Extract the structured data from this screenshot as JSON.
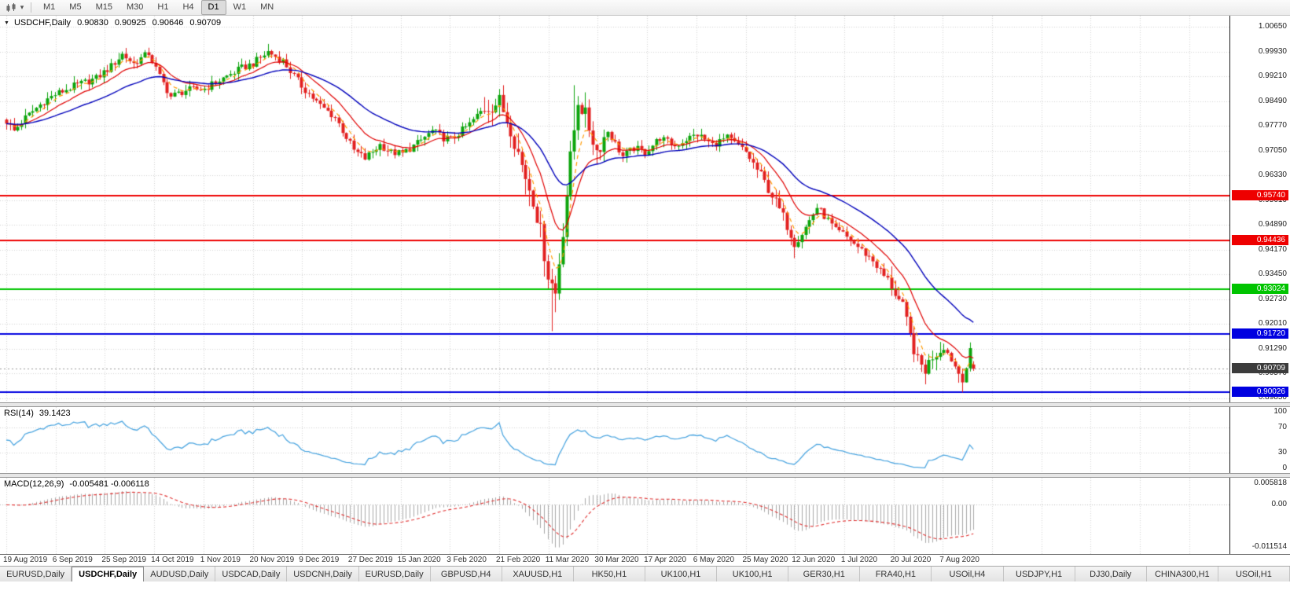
{
  "toolbar": {
    "timeframes": [
      "M1",
      "M5",
      "M15",
      "M30",
      "H1",
      "H4",
      "D1",
      "W1",
      "MN"
    ],
    "active_timeframe": "D1",
    "icons": [
      "chart-type-icon",
      "dropdown-arrow-icon"
    ]
  },
  "chart": {
    "title": "USDCHF,Daily",
    "ohlc": {
      "open": "0.90830",
      "high": "0.90925",
      "low": "0.90646",
      "close": "0.90709"
    }
  },
  "price_axis": {
    "ticks": [
      "1.00650",
      "0.99930",
      "0.99210",
      "0.98490",
      "0.97770",
      "0.97050",
      "0.96330",
      "0.95610",
      "0.94890",
      "0.94170",
      "0.93450",
      "0.92730",
      "0.92010",
      "0.91290",
      "0.90570",
      "0.89850"
    ]
  },
  "levels": [
    {
      "price": 0.9574,
      "label": "0.95740",
      "color": "#ee0000"
    },
    {
      "price": 0.94436,
      "label": "0.94436",
      "color": "#ee0000"
    },
    {
      "price": 0.93024,
      "label": "0.93024",
      "color": "#00c400"
    },
    {
      "price": 0.9172,
      "label": "0.91720",
      "color": "#0000e0"
    },
    {
      "price": 0.90026,
      "label": "0.90026",
      "color": "#0000e0"
    }
  ],
  "current_price": {
    "value": 0.90709,
    "label": "0.90709",
    "color": "#3c3c3c"
  },
  "rsi": {
    "label": "RSI(14)",
    "value": "39.1423",
    "axis": [
      {
        "v": 100,
        "label": "100"
      },
      {
        "v": 70,
        "label": "70"
      },
      {
        "v": 30,
        "label": "30"
      },
      {
        "v": 0,
        "label": "0"
      }
    ],
    "level_lines": [
      70,
      30
    ],
    "color": "#4da6e0"
  },
  "macd": {
    "label": "MACD(12,26,9)",
    "values": "-0.005481 -0.006118",
    "axis_top": "0.005818",
    "axis_zero": "0.00",
    "axis_bottom": "-0.011514",
    "hist_color": "#a8a8a8",
    "signal_color": "#e03030"
  },
  "date_axis": [
    "19 Aug 2019",
    "6 Sep 2019",
    "25 Sep 2019",
    "14 Oct 2019",
    "1 Nov 2019",
    "20 Nov 2019",
    "9 Dec 2019",
    "27 Dec 2019",
    "15 Jan 2020",
    "3 Feb 2020",
    "21 Feb 2020",
    "11 Mar 2020",
    "30 Mar 2020",
    "17 Apr 2020",
    "6 May 2020",
    "25 May 2020",
    "12 Jun 2020",
    "1 Jul 2020",
    "20 Jul 2020",
    "7 Aug 2020"
  ],
  "tabs": [
    {
      "label": "EURUSD,Daily",
      "active": false
    },
    {
      "label": "USDCHF,Daily",
      "active": true
    },
    {
      "label": "AUDUSD,Daily",
      "active": false
    },
    {
      "label": "USDCAD,Daily",
      "active": false
    },
    {
      "label": "USDCNH,Daily",
      "active": false
    },
    {
      "label": "EURUSD,Daily",
      "active": false
    },
    {
      "label": "GBPUSD,H4",
      "active": false
    },
    {
      "label": "XAUUSD,H1",
      "active": false
    },
    {
      "label": "HK50,H1",
      "active": false
    },
    {
      "label": "UK100,H1",
      "active": false
    },
    {
      "label": "UK100,H1",
      "active": false
    },
    {
      "label": "GER30,H1",
      "active": false
    },
    {
      "label": "FRA40,H1",
      "active": false
    },
    {
      "label": "USOil,H4",
      "active": false
    },
    {
      "label": "USDJPY,H1",
      "active": false
    },
    {
      "label": "DJ30,Daily",
      "active": false
    },
    {
      "label": "CHINA300,H1",
      "active": false
    },
    {
      "label": "USOil,H1",
      "active": false
    }
  ],
  "chart_data": {
    "type": "candlestick",
    "symbol": "USDCHF",
    "timeframe": "Daily",
    "visible_range": {
      "start": "19 Aug 2019",
      "end": "21 Aug 2020"
    },
    "y_range": [
      0.8973,
      1.0097
    ],
    "candle_count": 260,
    "last_ohlc": {
      "open": 0.9083,
      "high": 0.90925,
      "low": 0.90646,
      "close": 0.90709
    },
    "colors": {
      "up": "#0ca50c",
      "down": "#e22020",
      "grid": "#d2d2d2"
    },
    "close_waypoints": [
      [
        0,
        0.979
      ],
      [
        2,
        0.9762
      ],
      [
        5,
        0.98
      ],
      [
        10,
        0.9848
      ],
      [
        13,
        0.9868
      ],
      [
        18,
        0.9892
      ],
      [
        24,
        0.9915
      ],
      [
        28,
        0.995
      ],
      [
        31,
        0.9985
      ],
      [
        34,
        0.9958
      ],
      [
        38,
        0.9988
      ],
      [
        41,
        0.992
      ],
      [
        44,
        0.9862
      ],
      [
        48,
        0.988
      ],
      [
        53,
        0.9885
      ],
      [
        58,
        0.9915
      ],
      [
        63,
        0.9945
      ],
      [
        66,
        0.9958
      ],
      [
        70,
        0.9992
      ],
      [
        74,
        0.9965
      ],
      [
        79,
        0.9893
      ],
      [
        84,
        0.9835
      ],
      [
        88,
        0.9802
      ],
      [
        93,
        0.9705
      ],
      [
        96,
        0.9682
      ],
      [
        100,
        0.9722
      ],
      [
        103,
        0.97
      ],
      [
        106,
        0.9696
      ],
      [
        110,
        0.9726
      ],
      [
        114,
        0.9762
      ],
      [
        117,
        0.9742
      ],
      [
        119,
        0.9737
      ],
      [
        124,
        0.9782
      ],
      [
        128,
        0.983
      ],
      [
        132,
        0.9846
      ],
      [
        135,
        0.9772
      ],
      [
        138,
        0.9662
      ],
      [
        141,
        0.9565
      ],
      [
        143,
        0.9468
      ],
      [
        145,
        0.9345
      ],
      [
        147,
        0.929
      ],
      [
        149,
        0.9475
      ],
      [
        151,
        0.968
      ],
      [
        153,
        0.9852
      ],
      [
        155,
        0.9805
      ],
      [
        158,
        0.9705
      ],
      [
        161,
        0.9762
      ],
      [
        165,
        0.9688
      ],
      [
        168,
        0.9712
      ],
      [
        171,
        0.97
      ],
      [
        175,
        0.9742
      ],
      [
        179,
        0.9718
      ],
      [
        182,
        0.9738
      ],
      [
        185,
        0.9752
      ],
      [
        189,
        0.9722
      ],
      [
        193,
        0.9742
      ],
      [
        196,
        0.9718
      ],
      [
        198,
        0.97
      ],
      [
        202,
        0.9632
      ],
      [
        205,
        0.9575
      ],
      [
        208,
        0.9512
      ],
      [
        211,
        0.9438
      ],
      [
        214,
        0.9482
      ],
      [
        217,
        0.954
      ],
      [
        220,
        0.9502
      ],
      [
        222,
        0.9472
      ],
      [
        224,
        0.9462
      ],
      [
        228,
        0.9425
      ],
      [
        232,
        0.9385
      ],
      [
        235,
        0.934
      ],
      [
        237,
        0.9312
      ],
      [
        240,
        0.9248
      ],
      [
        242,
        0.9165
      ],
      [
        244,
        0.9092
      ],
      [
        246,
        0.9068
      ],
      [
        248,
        0.9108
      ],
      [
        251,
        0.9135
      ],
      [
        253,
        0.9098
      ],
      [
        255,
        0.9058
      ],
      [
        256,
        0.9042
      ],
      [
        257,
        0.9075
      ],
      [
        258,
        0.912
      ],
      [
        259,
        0.90709
      ]
    ],
    "spikes": [
      {
        "i": 70,
        "high": 1.0015
      },
      {
        "i": 146,
        "low": 0.918
      },
      {
        "i": 147,
        "low": 0.9235
      },
      {
        "i": 152,
        "high": 0.9895
      },
      {
        "i": 211,
        "low": 0.9392
      },
      {
        "i": 255,
        "low": 0.903
      },
      {
        "i": 256,
        "low": 0.9002
      }
    ],
    "volatility_zones": [
      {
        "from": 128,
        "to": 160,
        "mult": 2.4
      },
      {
        "from": 200,
        "to": 215,
        "mult": 1.4
      },
      {
        "from": 236,
        "to": 250,
        "mult": 1.7
      }
    ],
    "overlays": [
      {
        "name": "ma-fast",
        "type": "ema",
        "period": 5,
        "color": "#ff9900",
        "dash": [
          5,
          4
        ],
        "width": 1.2
      },
      {
        "name": "ma-mid",
        "type": "ema",
        "period": 13,
        "color": "#e00000",
        "dash": [],
        "width": 1.2
      },
      {
        "name": "ma-slow",
        "type": "ema",
        "period": 34,
        "color": "#0000bb",
        "dash": [],
        "width": 1.4
      }
    ],
    "indicators": [
      {
        "name": "RSI",
        "period": 14,
        "current": 39.1423,
        "scale": [
          0,
          100
        ],
        "levels": [
          30,
          70
        ]
      },
      {
        "name": "MACD",
        "params": [
          12,
          26,
          9
        ],
        "current_main": -0.005481,
        "current_signal": -0.006118,
        "scale": [
          -0.011514,
          0.005818
        ]
      }
    ]
  }
}
